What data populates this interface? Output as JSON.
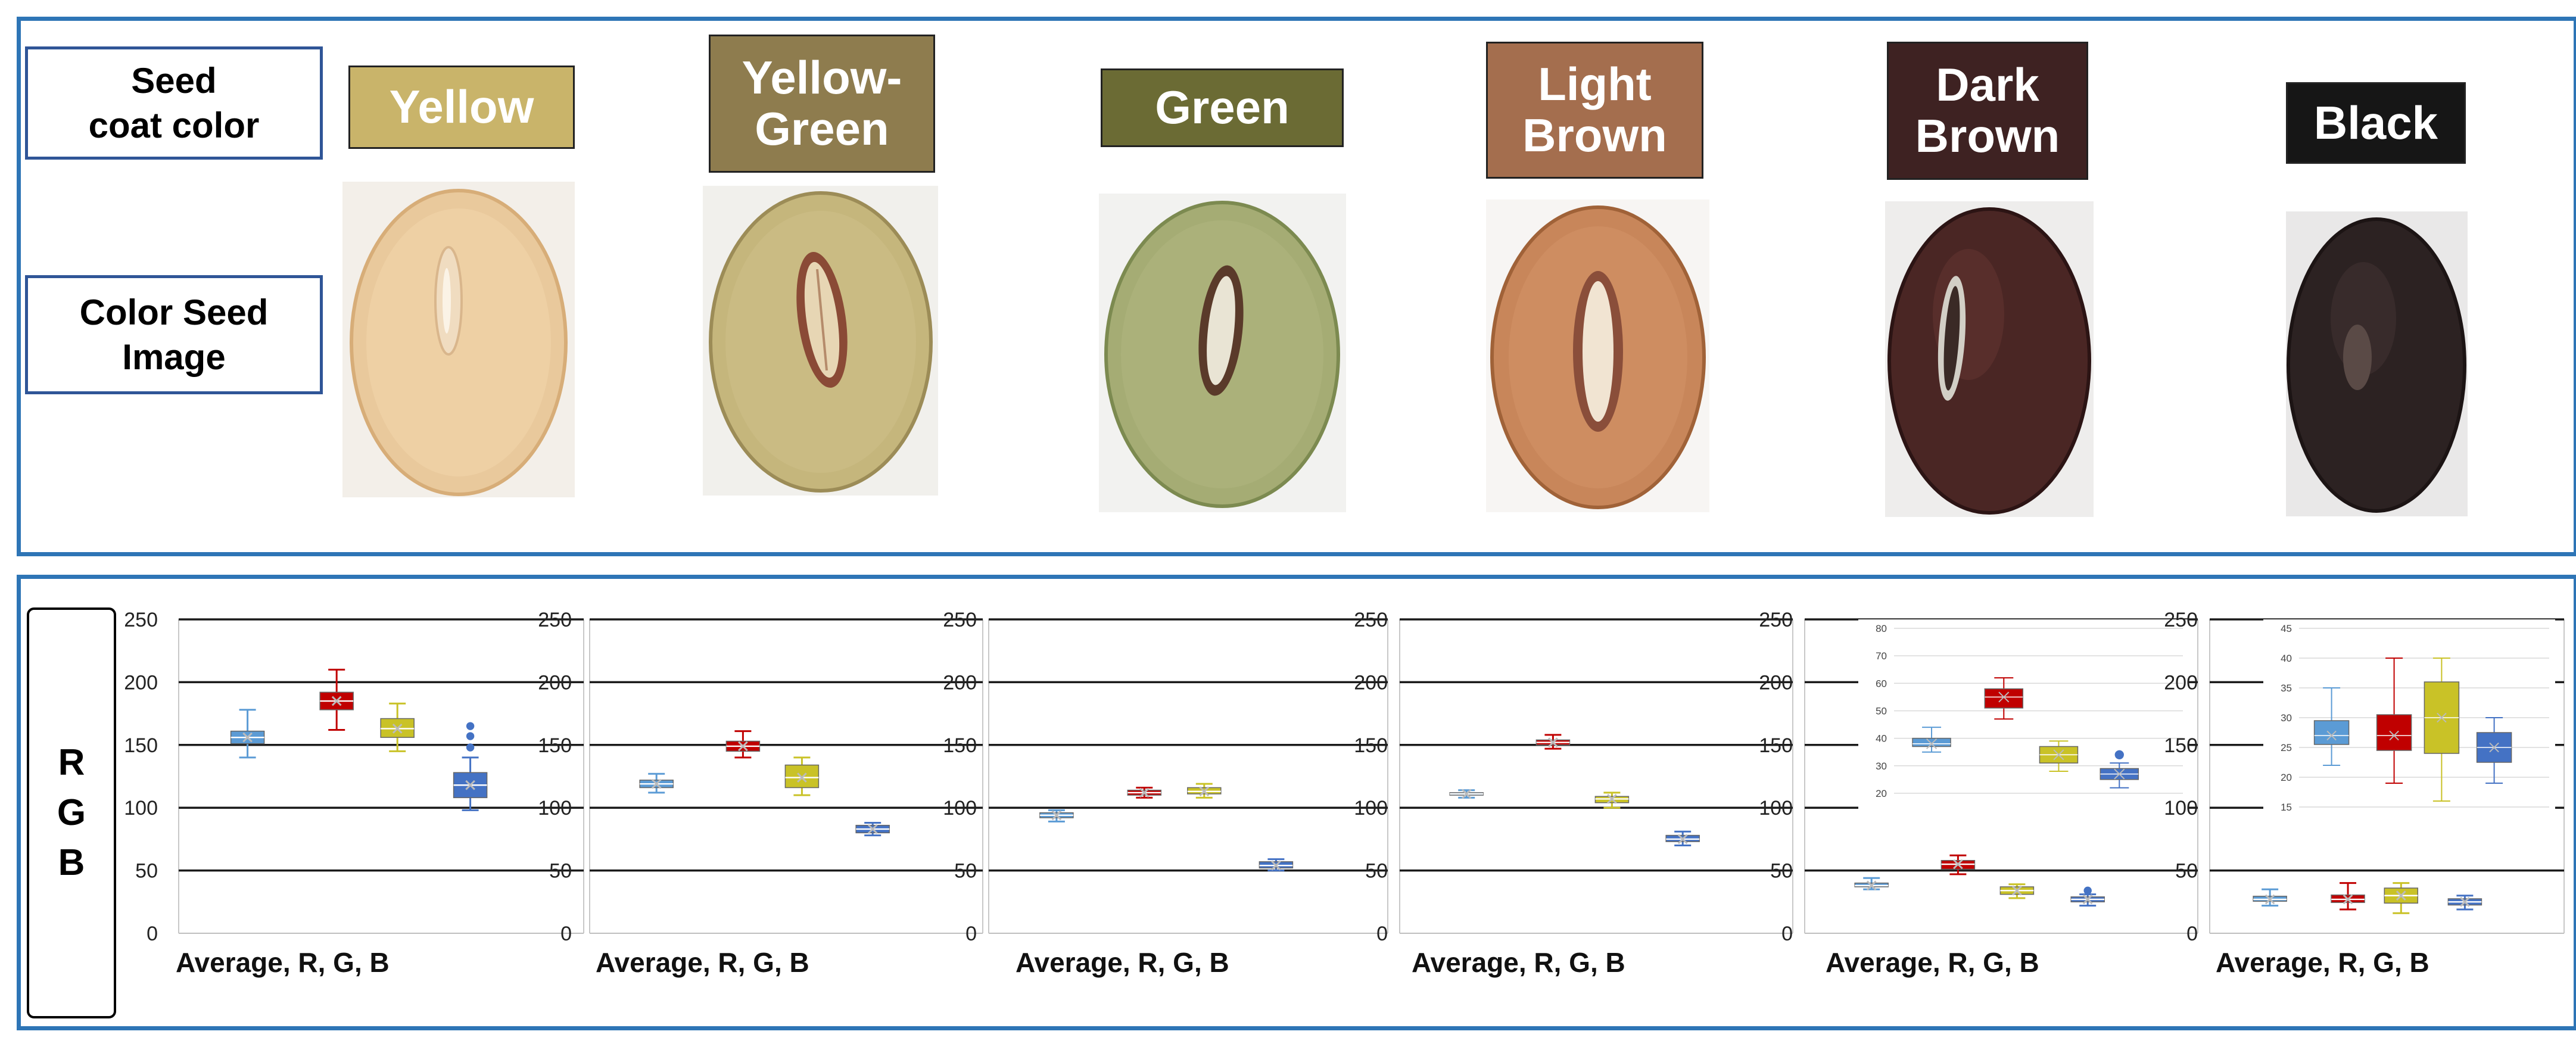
{
  "row_labels": {
    "seed_coat_color": "Seed\ncoat color",
    "color_seed_image": "Color Seed\nImage"
  },
  "rgb_label": {
    "r": "R",
    "g": "G",
    "b": "B"
  },
  "colors": {
    "panel_border": "#2e75b6",
    "label_border": "#2f5597",
    "series": {
      "average": "#5b9bd5",
      "R": "#c00000",
      "G": "#c9c227",
      "B": "#4472c4"
    }
  },
  "seed_colors": [
    {
      "label": "Yellow",
      "box_color": "#c9b46a",
      "seed_fill": "#e9c99c",
      "seed_edge": "#d7ad78",
      "bg": "#f3efe9"
    },
    {
      "label": "Yellow-\nGreen",
      "box_color": "#8e7c4e",
      "seed_fill": "#c5b67c",
      "seed_edge": "#9c8c57",
      "bg": "#f1f0ec"
    },
    {
      "label": "Green",
      "box_color": "#6b6b34",
      "seed_fill": "#a5ac74",
      "seed_edge": "#7c8a50",
      "bg": "#f2f2f0"
    },
    {
      "label": "Light\nBrown",
      "box_color": "#a46e4e",
      "seed_fill": "#c8865a",
      "seed_edge": "#a06238",
      "bg": "#f7f5f3"
    },
    {
      "label": "Dark\nBrown",
      "box_color": "#3e2222",
      "seed_fill": "#4a2624",
      "seed_edge": "#2c1414",
      "bg": "#eeedec"
    },
    {
      "label": "Black",
      "box_color": "#161616",
      "seed_fill": "#2c2222",
      "seed_edge": "#1c1414",
      "bg": "#e9e8e8"
    }
  ],
  "chart_data": [
    {
      "type": "box",
      "title": "Yellow",
      "xlabel": "Average,  R, G, B",
      "ylabel": "RGB",
      "ylim": [
        0,
        250
      ],
      "yticks": [
        0,
        50,
        100,
        150,
        200,
        250
      ],
      "categories": [
        "Average",
        "R",
        "G",
        "B"
      ],
      "series": [
        {
          "name": "Average",
          "color": "#5b9bd5",
          "min": 140,
          "q1": 151,
          "median": 156,
          "q3": 161,
          "max": 178,
          "mean": 156,
          "outliers": []
        },
        {
          "name": "R",
          "color": "#c00000",
          "min": 162,
          "q1": 178,
          "median": 185,
          "q3": 192,
          "max": 210,
          "mean": 185,
          "outliers": []
        },
        {
          "name": "G",
          "color": "#c9c227",
          "min": 145,
          "q1": 156,
          "median": 163,
          "q3": 171,
          "max": 183,
          "mean": 163,
          "outliers": []
        },
        {
          "name": "B",
          "color": "#4472c4",
          "min": 98,
          "q1": 108,
          "median": 118,
          "q3": 128,
          "max": 140,
          "mean": 118,
          "outliers": [
            148,
            157,
            165
          ]
        }
      ]
    },
    {
      "type": "box",
      "title": "Yellow-Green",
      "xlabel": "Average,  R, G, B",
      "ylim": [
        0,
        250
      ],
      "yticks": [
        0,
        50,
        100,
        150,
        200,
        250
      ],
      "categories": [
        "Average",
        "R",
        "G",
        "B"
      ],
      "series": [
        {
          "name": "Average",
          "color": "#5b9bd5",
          "min": 112,
          "q1": 116,
          "median": 119,
          "q3": 122,
          "max": 127,
          "mean": 119,
          "outliers": []
        },
        {
          "name": "R",
          "color": "#c00000",
          "min": 140,
          "q1": 145,
          "median": 149,
          "q3": 153,
          "max": 161,
          "mean": 149,
          "outliers": []
        },
        {
          "name": "G",
          "color": "#c9c227",
          "min": 110,
          "q1": 116,
          "median": 124,
          "q3": 134,
          "max": 140,
          "mean": 124,
          "outliers": []
        },
        {
          "name": "B",
          "color": "#4472c4",
          "min": 78,
          "q1": 80,
          "median": 83,
          "q3": 86,
          "max": 88,
          "mean": 83,
          "outliers": []
        }
      ]
    },
    {
      "type": "box",
      "title": "Green",
      "xlabel": "Average,  R, G, B",
      "ylim": [
        0,
        250
      ],
      "yticks": [
        0,
        50,
        100,
        150,
        200,
        250
      ],
      "categories": [
        "Average",
        "R",
        "G",
        "B"
      ],
      "series": [
        {
          "name": "Average",
          "color": "#5b9bd5",
          "min": 89,
          "q1": 92,
          "median": 94,
          "q3": 96,
          "max": 98,
          "mean": 94,
          "outliers": []
        },
        {
          "name": "R",
          "color": "#c00000",
          "min": 108,
          "q1": 110,
          "median": 112,
          "q3": 114,
          "max": 116,
          "mean": 112,
          "outliers": []
        },
        {
          "name": "G",
          "color": "#c9c227",
          "min": 108,
          "q1": 111,
          "median": 113,
          "q3": 116,
          "max": 119,
          "mean": 113,
          "outliers": []
        },
        {
          "name": "B",
          "color": "#4472c4",
          "min": 50,
          "q1": 52,
          "median": 54,
          "q3": 57,
          "max": 59,
          "mean": 54,
          "outliers": []
        }
      ]
    },
    {
      "type": "box",
      "title": "Light Brown",
      "xlabel": "Average,  R, G, B",
      "ylim": [
        0,
        250
      ],
      "yticks": [
        0,
        50,
        100,
        150,
        200,
        250
      ],
      "categories": [
        "Average",
        "R",
        "G",
        "B"
      ],
      "series": [
        {
          "name": "Average",
          "color": "#5b9bd5",
          "min": 108,
          "q1": 110,
          "median": 111,
          "q3": 112,
          "max": 114,
          "mean": 111,
          "outliers": []
        },
        {
          "name": "R",
          "color": "#c00000",
          "min": 147,
          "q1": 150,
          "median": 152,
          "q3": 154,
          "max": 158,
          "mean": 152,
          "outliers": []
        },
        {
          "name": "G",
          "color": "#c9c227",
          "min": 100,
          "q1": 104,
          "median": 107,
          "q3": 109,
          "max": 112,
          "mean": 107,
          "outliers": []
        },
        {
          "name": "B",
          "color": "#4472c4",
          "min": 70,
          "q1": 73,
          "median": 75,
          "q3": 78,
          "max": 81,
          "mean": 75,
          "outliers": []
        }
      ]
    },
    {
      "type": "box",
      "title": "Dark Brown",
      "xlabel": "Average,  R, G, B",
      "ylim": [
        0,
        250
      ],
      "yticks": [
        0,
        50,
        100,
        150,
        200,
        250
      ],
      "categories": [
        "Average",
        "R",
        "G",
        "B"
      ],
      "series": [
        {
          "name": "Average",
          "color": "#5b9bd5",
          "min": 35,
          "q1": 37,
          "median": 38,
          "q3": 40,
          "max": 44,
          "mean": 38,
          "outliers": []
        },
        {
          "name": "R",
          "color": "#c00000",
          "min": 47,
          "q1": 51,
          "median": 55,
          "q3": 58,
          "max": 62,
          "mean": 55,
          "outliers": []
        },
        {
          "name": "G",
          "color": "#c9c227",
          "min": 28,
          "q1": 31,
          "median": 34,
          "q3": 37,
          "max": 39,
          "mean": 34,
          "outliers": []
        },
        {
          "name": "B",
          "color": "#4472c4",
          "min": 22,
          "q1": 25,
          "median": 27,
          "q3": 29,
          "max": 31,
          "mean": 27,
          "outliers": [
            34
          ]
        }
      ],
      "inset": {
        "ylim": [
          15,
          80
        ],
        "yticks": [
          20,
          30,
          40,
          50,
          60,
          70,
          80
        ]
      }
    },
    {
      "type": "box",
      "title": "Black",
      "xlabel": "Average,  R, G, B",
      "ylim": [
        0,
        250
      ],
      "yticks": [
        0,
        50,
        100,
        150,
        200,
        250
      ],
      "categories": [
        "Average",
        "R",
        "G",
        "B"
      ],
      "series": [
        {
          "name": "Average",
          "color": "#5b9bd5",
          "min": 22,
          "q1": 25.5,
          "median": 27,
          "q3": 29.5,
          "max": 35,
          "mean": 27,
          "outliers": []
        },
        {
          "name": "R",
          "color": "#c00000",
          "min": 19,
          "q1": 24.5,
          "median": 27,
          "q3": 30.5,
          "max": 40,
          "mean": 27,
          "outliers": []
        },
        {
          "name": "G",
          "color": "#c9c227",
          "min": 16,
          "q1": 24,
          "median": 30,
          "q3": 36,
          "max": 40,
          "mean": 30,
          "outliers": []
        },
        {
          "name": "B",
          "color": "#4472c4",
          "min": 19,
          "q1": 22.5,
          "median": 25,
          "q3": 27.5,
          "max": 30,
          "mean": 25,
          "outliers": []
        }
      ],
      "inset": {
        "ylim": [
          15,
          45
        ],
        "yticks": [
          15,
          20,
          25,
          30,
          35,
          40,
          45
        ]
      }
    }
  ]
}
